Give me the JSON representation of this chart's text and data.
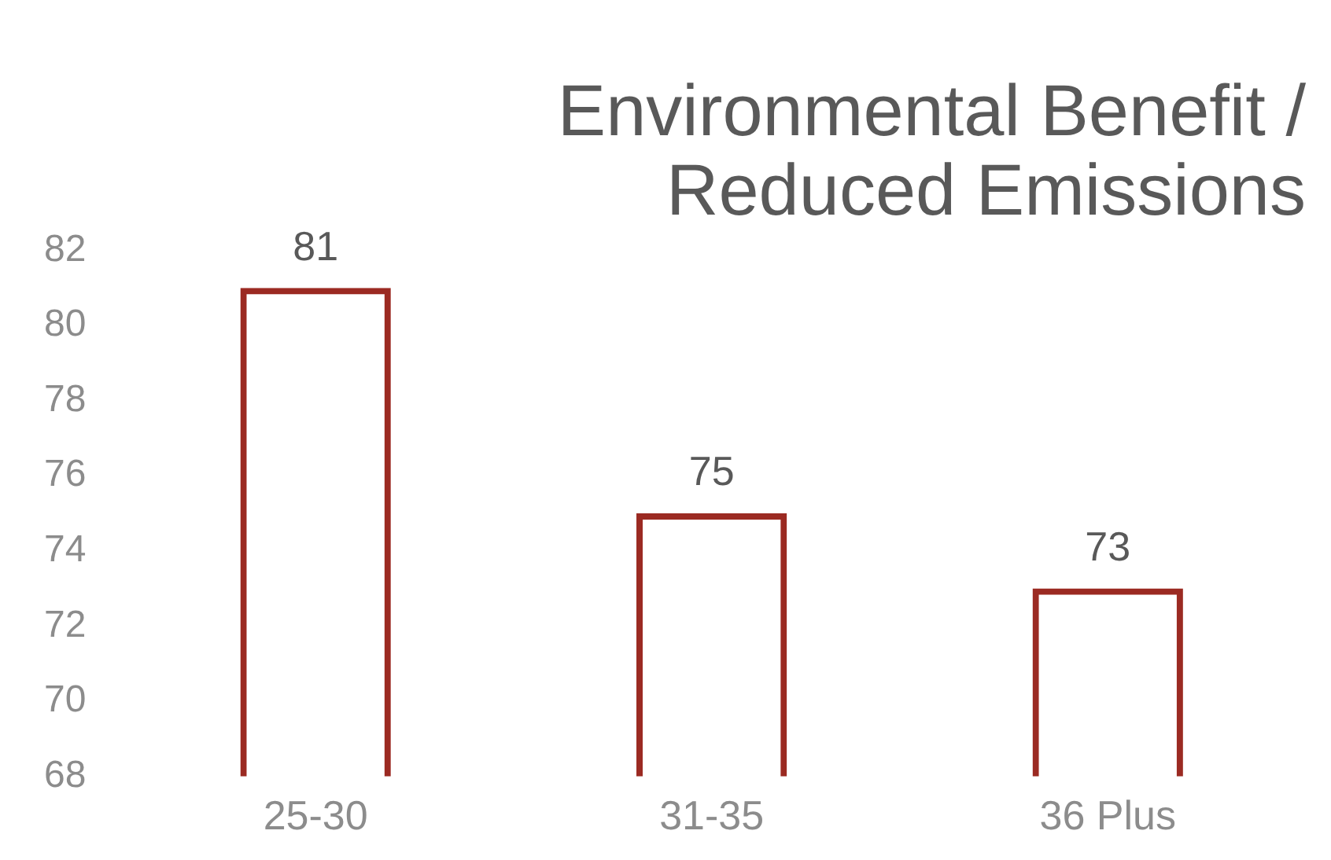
{
  "chart_data": {
    "type": "bar",
    "title": "Environmental Benefit / Reduced Emissions",
    "categories": [
      "25-30",
      "31-35",
      "36 Plus"
    ],
    "values": [
      81,
      75,
      73
    ],
    "color": "#9b2a22",
    "ylim": [
      68,
      82
    ],
    "yticks": [
      68,
      70,
      72,
      74,
      76,
      78,
      80,
      82
    ],
    "grid": false,
    "data_labels": true
  }
}
